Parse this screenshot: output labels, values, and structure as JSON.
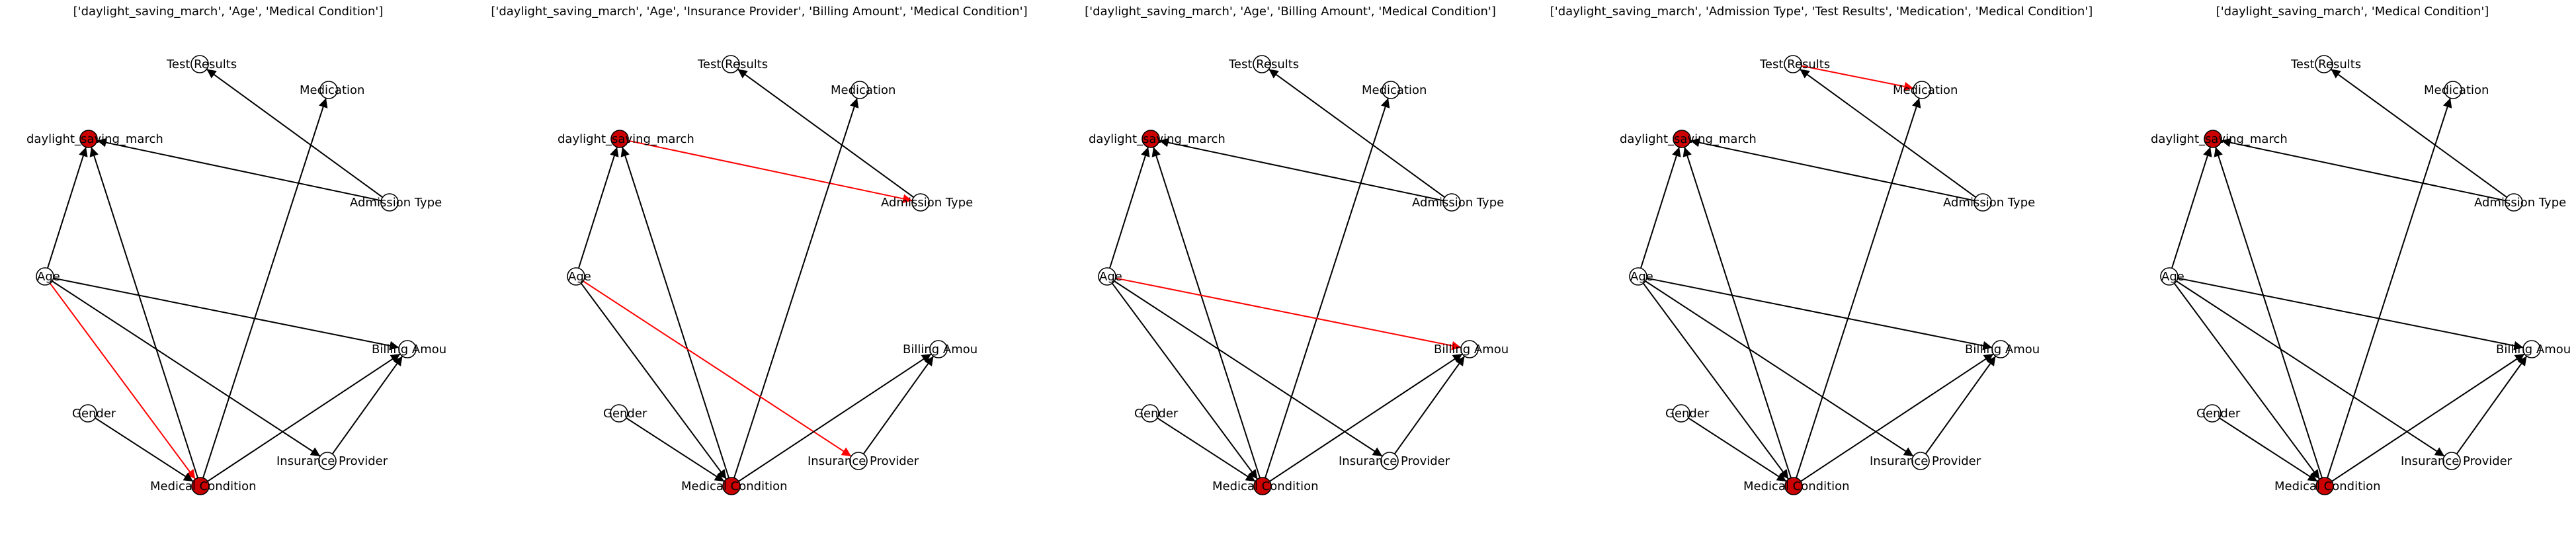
{
  "colors": {
    "edge_default": "#000000",
    "edge_highlight": "#ff0000",
    "node_highlight": "#cc0000",
    "node_plain": "#ffffff"
  },
  "nodes": [
    {
      "id": "daylight_saving_march",
      "label": "daylight_saving_march"
    },
    {
      "id": "Age",
      "label": "Age"
    },
    {
      "id": "Gender",
      "label": "Gender"
    },
    {
      "id": "Medical Condition",
      "label": "Medical Condition"
    },
    {
      "id": "Insurance Provider",
      "label": "Insurance Provider"
    },
    {
      "id": "Billing Amount",
      "label": "Billing Amount"
    },
    {
      "id": "Admission Type",
      "label": "Admission Type"
    },
    {
      "id": "Test Results",
      "label": "Test Results"
    },
    {
      "id": "Medication",
      "label": "Medication"
    }
  ],
  "panels": [
    {
      "title": "['daylight_saving_march', 'Age', 'Medical Condition']",
      "highlighted_nodes": [
        "daylight_saving_march",
        "Medical Condition"
      ],
      "edges": [
        {
          "from": "Age",
          "to": "daylight_saving_march",
          "highlight": false
        },
        {
          "from": "Medical Condition",
          "to": "daylight_saving_march",
          "highlight": false
        },
        {
          "from": "Admission Type",
          "to": "daylight_saving_march",
          "highlight": false
        },
        {
          "from": "Admission Type",
          "to": "Test Results",
          "highlight": false
        },
        {
          "from": "Medical Condition",
          "to": "Medication",
          "highlight": false
        },
        {
          "from": "Age",
          "to": "Billing Amount",
          "highlight": false
        },
        {
          "from": "Age",
          "to": "Insurance Provider",
          "highlight": false
        },
        {
          "from": "Age",
          "to": "Medical Condition",
          "highlight": true
        },
        {
          "from": "Gender",
          "to": "Medical Condition",
          "highlight": false
        },
        {
          "from": "Medical Condition",
          "to": "Billing Amount",
          "highlight": false
        },
        {
          "from": "Insurance Provider",
          "to": "Billing Amount",
          "highlight": false
        }
      ]
    },
    {
      "title": "['daylight_saving_march', 'Age', 'Insurance Provider', 'Billing Amount', 'Medical Condition']",
      "highlighted_nodes": [
        "daylight_saving_march",
        "Medical Condition"
      ],
      "edges": [
        {
          "from": "Age",
          "to": "daylight_saving_march",
          "highlight": false
        },
        {
          "from": "Medical Condition",
          "to": "daylight_saving_march",
          "highlight": false
        },
        {
          "from": "daylight_saving_march",
          "to": "Admission Type",
          "highlight": true
        },
        {
          "from": "Admission Type",
          "to": "Test Results",
          "highlight": false
        },
        {
          "from": "Medical Condition",
          "to": "Medication",
          "highlight": false
        },
        {
          "from": "Age",
          "to": "Insurance Provider",
          "highlight": true
        },
        {
          "from": "Age",
          "to": "Medical Condition",
          "highlight": false
        },
        {
          "from": "Gender",
          "to": "Medical Condition",
          "highlight": false
        },
        {
          "from": "Medical Condition",
          "to": "Billing Amount",
          "highlight": false
        },
        {
          "from": "Insurance Provider",
          "to": "Billing Amount",
          "highlight": false
        }
      ]
    },
    {
      "title": "['daylight_saving_march', 'Age', 'Billing Amount', 'Medical Condition']",
      "highlighted_nodes": [
        "daylight_saving_march",
        "Medical Condition"
      ],
      "edges": [
        {
          "from": "Age",
          "to": "daylight_saving_march",
          "highlight": false
        },
        {
          "from": "Medical Condition",
          "to": "daylight_saving_march",
          "highlight": false
        },
        {
          "from": "Admission Type",
          "to": "daylight_saving_march",
          "highlight": false
        },
        {
          "from": "Admission Type",
          "to": "Test Results",
          "highlight": false
        },
        {
          "from": "Medical Condition",
          "to": "Medication",
          "highlight": false
        },
        {
          "from": "Age",
          "to": "Billing Amount",
          "highlight": true
        },
        {
          "from": "Age",
          "to": "Insurance Provider",
          "highlight": false
        },
        {
          "from": "Age",
          "to": "Medical Condition",
          "highlight": false
        },
        {
          "from": "Gender",
          "to": "Medical Condition",
          "highlight": false
        },
        {
          "from": "Medical Condition",
          "to": "Billing Amount",
          "highlight": false
        },
        {
          "from": "Insurance Provider",
          "to": "Billing Amount",
          "highlight": false
        }
      ]
    },
    {
      "title": "['daylight_saving_march', 'Admission Type', 'Test Results', 'Medication', 'Medical Condition']",
      "highlighted_nodes": [
        "daylight_saving_march",
        "Medical Condition"
      ],
      "edges": [
        {
          "from": "Age",
          "to": "daylight_saving_march",
          "highlight": false
        },
        {
          "from": "Medical Condition",
          "to": "daylight_saving_march",
          "highlight": false
        },
        {
          "from": "Admission Type",
          "to": "daylight_saving_march",
          "highlight": false
        },
        {
          "from": "Admission Type",
          "to": "Test Results",
          "highlight": false
        },
        {
          "from": "Test Results",
          "to": "Medication",
          "highlight": true
        },
        {
          "from": "Medical Condition",
          "to": "Medication",
          "highlight": false
        },
        {
          "from": "Age",
          "to": "Billing Amount",
          "highlight": false
        },
        {
          "from": "Age",
          "to": "Insurance Provider",
          "highlight": false
        },
        {
          "from": "Age",
          "to": "Medical Condition",
          "highlight": false
        },
        {
          "from": "Gender",
          "to": "Medical Condition",
          "highlight": false
        },
        {
          "from": "Medical Condition",
          "to": "Billing Amount",
          "highlight": false
        },
        {
          "from": "Insurance Provider",
          "to": "Billing Amount",
          "highlight": false
        }
      ]
    },
    {
      "title": "['daylight_saving_march', 'Medical Condition']",
      "highlighted_nodes": [
        "daylight_saving_march",
        "Medical Condition"
      ],
      "edges": [
        {
          "from": "Age",
          "to": "daylight_saving_march",
          "highlight": false
        },
        {
          "from": "Medical Condition",
          "to": "daylight_saving_march",
          "highlight": false
        },
        {
          "from": "Admission Type",
          "to": "daylight_saving_march",
          "highlight": false
        },
        {
          "from": "Admission Type",
          "to": "Test Results",
          "highlight": false
        },
        {
          "from": "Medical Condition",
          "to": "Medication",
          "highlight": false
        },
        {
          "from": "Age",
          "to": "Billing Amount",
          "highlight": false
        },
        {
          "from": "Age",
          "to": "Insurance Provider",
          "highlight": false
        },
        {
          "from": "Age",
          "to": "Medical Condition",
          "highlight": false
        },
        {
          "from": "Gender",
          "to": "Medical Condition",
          "highlight": false
        },
        {
          "from": "Medical Condition",
          "to": "Billing Amount",
          "highlight": false
        },
        {
          "from": "Insurance Provider",
          "to": "Billing Amount",
          "highlight": false
        }
      ]
    }
  ]
}
